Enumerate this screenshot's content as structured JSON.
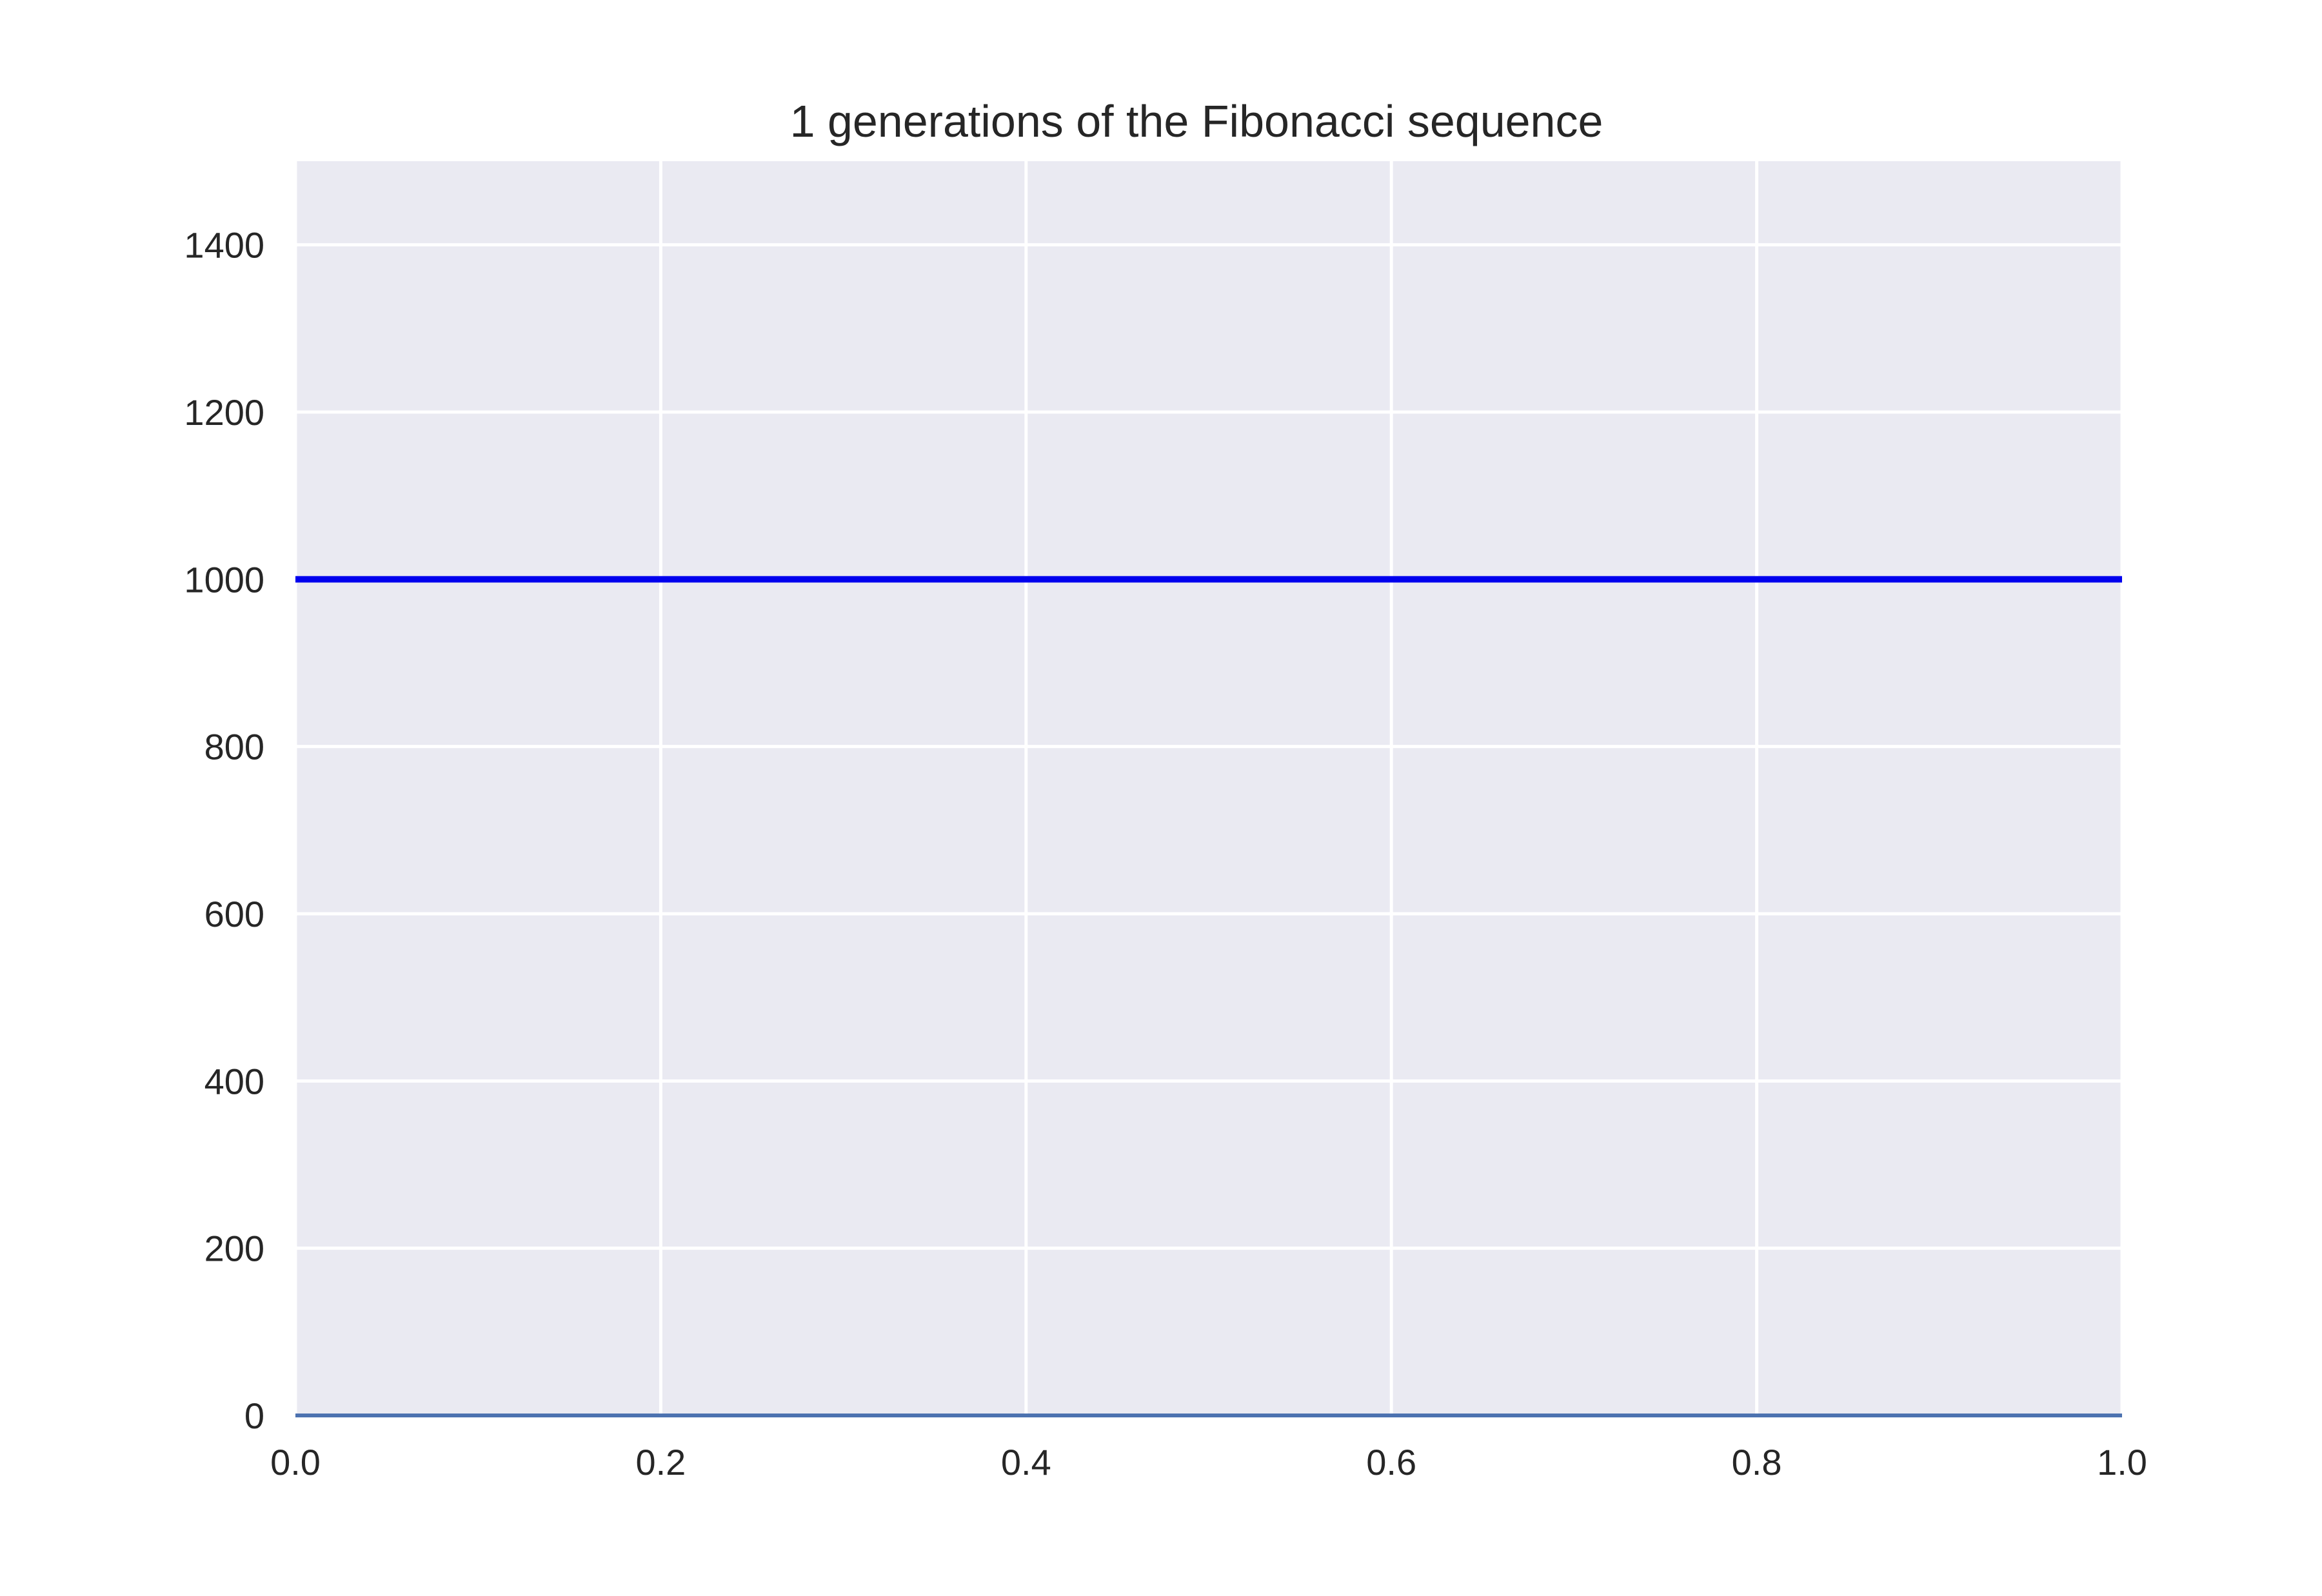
{
  "chart_data": {
    "type": "line",
    "title": "1 generations of the Fibonacci sequence",
    "xlabel": "",
    "ylabel": "",
    "xlim": [
      0.0,
      1.0
    ],
    "ylim": [
      0,
      1500
    ],
    "x_ticks": [
      "0.0",
      "0.2",
      "0.4",
      "0.6",
      "0.8",
      "1.0"
    ],
    "y_ticks": [
      "0",
      "200",
      "400",
      "600",
      "800",
      "1000",
      "1200",
      "1400"
    ],
    "grid": true,
    "legend": "none",
    "series": [
      {
        "color": "#0000ee",
        "x": [
          0.0,
          1.0
        ],
        "y": [
          1000,
          1000
        ]
      },
      {
        "color": "#4c72b0",
        "x": [
          0.0,
          1.0
        ],
        "y": [
          0,
          0
        ]
      }
    ]
  },
  "colors": {
    "plot_background": "#eaeaf2",
    "grid": "#ffffff",
    "text": "#262626"
  }
}
